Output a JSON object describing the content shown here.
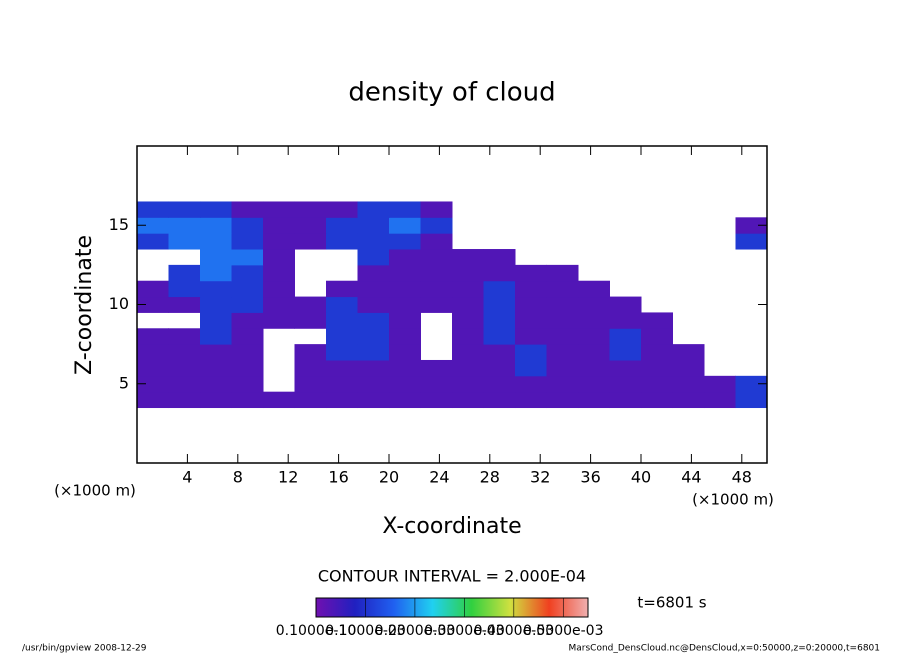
{
  "chart_data": {
    "type": "heatmap",
    "title": "density of cloud",
    "x_label": "X-coordinate",
    "y_label": "Z-coordinate",
    "x_unit_left": "(×1000 m)",
    "x_unit_right": "(×1000 m)",
    "contour_interval": "CONTOUR INTERVAL = 2.000E-04",
    "time_label": "t=6801 s",
    "footer_left": "/usr/bin/gpview   2008-12-29",
    "footer_right": "MarsCond_DensCloud.nc@DensCloud,x=0:50000,z=0:20000,t=6801",
    "xlim": [
      0,
      50
    ],
    "ylim": [
      0,
      20
    ],
    "xticks": [
      4,
      8,
      12,
      16,
      20,
      24,
      28,
      32,
      36,
      40,
      44,
      48
    ],
    "yticks": [
      5,
      10,
      15
    ],
    "x_edges": [
      0,
      2.5,
      5,
      7.5,
      10,
      12.5,
      15,
      17.5,
      20,
      22.5,
      25,
      27.5,
      30,
      32.5,
      35,
      37.5,
      40,
      42.5,
      45,
      47.5,
      50
    ],
    "y_edges": [
      3.5,
      4.5,
      5.5,
      6.5,
      7.5,
      8.5,
      9.5,
      10.5,
      11.5,
      12.5,
      13.5,
      14.5,
      15.5,
      16.5
    ],
    "values": [
      [
        3e-05,
        3e-05,
        3e-05,
        3e-05,
        3e-05,
        3e-05,
        3e-05,
        3e-05,
        3e-05,
        3e-05,
        3e-05,
        3e-05,
        3e-05,
        3e-05,
        3e-05,
        3e-05,
        3e-05,
        3e-05,
        3e-05,
        0.00011
      ],
      [
        3e-05,
        3e-05,
        3e-05,
        3e-05,
        null,
        3e-05,
        3e-05,
        3e-05,
        3e-05,
        3e-05,
        3e-05,
        3e-05,
        3e-05,
        3e-05,
        3e-05,
        3e-05,
        3e-05,
        3e-05,
        3e-05,
        0.00011
      ],
      [
        3e-05,
        3e-05,
        3e-05,
        3e-05,
        null,
        3e-05,
        3e-05,
        3e-05,
        3e-05,
        3e-05,
        3e-05,
        3e-05,
        0.00011,
        3e-05,
        3e-05,
        3e-05,
        3e-05,
        3e-05,
        null,
        null
      ],
      [
        3e-05,
        3e-05,
        3e-05,
        3e-05,
        null,
        3e-05,
        0.00011,
        0.00011,
        3e-05,
        null,
        3e-05,
        3e-05,
        0.00011,
        3e-05,
        3e-05,
        0.00011,
        3e-05,
        3e-05,
        null,
        null
      ],
      [
        3e-05,
        3e-05,
        0.00011,
        3e-05,
        null,
        null,
        0.00011,
        0.00011,
        3e-05,
        null,
        3e-05,
        0.00011,
        3e-05,
        3e-05,
        3e-05,
        0.00011,
        3e-05,
        null,
        null,
        null
      ],
      [
        null,
        null,
        0.00011,
        3e-05,
        3e-05,
        3e-05,
        0.00011,
        0.00011,
        3e-05,
        null,
        3e-05,
        0.00011,
        3e-05,
        3e-05,
        3e-05,
        3e-05,
        3e-05,
        null,
        null,
        null
      ],
      [
        3e-05,
        3e-05,
        0.00011,
        0.00011,
        3e-05,
        3e-05,
        0.00011,
        3e-05,
        3e-05,
        3e-05,
        3e-05,
        0.00011,
        3e-05,
        3e-05,
        3e-05,
        3e-05,
        null,
        null,
        null,
        null
      ],
      [
        3e-05,
        0.00011,
        0.00011,
        0.00011,
        3e-05,
        null,
        3e-05,
        3e-05,
        3e-05,
        3e-05,
        3e-05,
        0.00011,
        3e-05,
        3e-05,
        3e-05,
        null,
        null,
        null,
        null,
        null
      ],
      [
        null,
        0.00011,
        0.00017,
        0.00011,
        3e-05,
        null,
        null,
        3e-05,
        3e-05,
        3e-05,
        3e-05,
        3e-05,
        3e-05,
        3e-05,
        null,
        null,
        null,
        null,
        null,
        null
      ],
      [
        null,
        null,
        0.00017,
        0.00017,
        3e-05,
        null,
        null,
        0.00011,
        3e-05,
        3e-05,
        3e-05,
        3e-05,
        null,
        null,
        null,
        null,
        null,
        null,
        null,
        null
      ],
      [
        0.00011,
        0.00017,
        0.00017,
        0.00011,
        3e-05,
        3e-05,
        0.00011,
        0.00011,
        0.00011,
        3e-05,
        null,
        null,
        null,
        null,
        null,
        null,
        null,
        null,
        null,
        0.00011
      ],
      [
        0.00017,
        0.00017,
        0.00017,
        0.00011,
        3e-05,
        3e-05,
        0.00011,
        0.00011,
        0.00017,
        0.00011,
        null,
        null,
        null,
        null,
        null,
        null,
        null,
        null,
        null,
        3e-05
      ],
      [
        0.00011,
        0.00011,
        0.00011,
        3e-05,
        3e-05,
        3e-05,
        3e-05,
        0.00011,
        0.00011,
        3e-05,
        null,
        null,
        null,
        null,
        null,
        null,
        null,
        null,
        null,
        null
      ]
    ],
    "colorbar": {
      "lim": [
        0,
        0.00055
      ],
      "ticks": [
        {
          "value": 1e-11,
          "label": "0.1000e-10"
        },
        {
          "value": 0.0001,
          "label": "0.1000e-03"
        },
        {
          "value": 0.0002,
          "label": "0.2000e-03"
        },
        {
          "value": 0.0003,
          "label": "0.3000e-03"
        },
        {
          "value": 0.0004,
          "label": "0.4000e-03"
        },
        {
          "value": 0.0005,
          "label": "0.5000e-03"
        }
      ],
      "colors": [
        "#7010b0",
        "#2020c0",
        "#2060f0",
        "#20d0f0",
        "#30d040",
        "#d0e040",
        "#f04020",
        "#f0b0b0"
      ]
    }
  }
}
